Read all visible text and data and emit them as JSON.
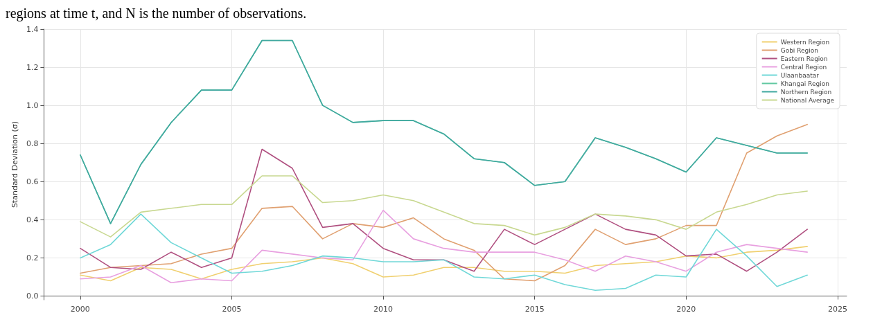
{
  "chart_data": {
    "type": "line",
    "ylabel": "Standard Deviation (σ)",
    "annotations": [
      "regions at time t, and N is the number of observations."
    ],
    "x": [
      2000,
      2001,
      2002,
      2003,
      2004,
      2005,
      2006,
      2007,
      2008,
      2009,
      2010,
      2011,
      2012,
      2013,
      2014,
      2015,
      2016,
      2017,
      2018,
      2019,
      2020,
      2021,
      2022,
      2023,
      2024
    ],
    "series": [
      {
        "name": "Western Region",
        "color": "#f0d070",
        "values": [
          0.11,
          0.08,
          0.15,
          0.14,
          0.09,
          0.14,
          0.17,
          0.18,
          0.2,
          0.17,
          0.1,
          0.11,
          0.15,
          0.15,
          0.13,
          0.13,
          0.12,
          0.16,
          0.17,
          0.18,
          0.21,
          0.2,
          0.23,
          0.24,
          0.26
        ]
      },
      {
        "name": "Gobi Region",
        "color": "#e0a070",
        "values": [
          0.12,
          0.15,
          0.16,
          0.17,
          0.22,
          0.25,
          0.46,
          0.47,
          0.3,
          0.38,
          0.36,
          0.41,
          0.3,
          0.24,
          0.09,
          0.08,
          0.16,
          0.35,
          0.27,
          0.3,
          0.37,
          0.37,
          0.75,
          0.84,
          0.9
        ]
      },
      {
        "name": "Eastern Region",
        "color": "#b05080",
        "values": [
          0.25,
          0.15,
          0.14,
          0.23,
          0.15,
          0.2,
          0.77,
          0.67,
          0.36,
          0.38,
          0.25,
          0.19,
          0.19,
          0.13,
          0.35,
          0.27,
          0.35,
          0.43,
          0.35,
          0.32,
          0.21,
          0.22,
          0.13,
          0.23,
          0.35
        ]
      },
      {
        "name": "Central Region",
        "color": "#e8a0e0",
        "values": [
          0.09,
          0.1,
          0.16,
          0.07,
          0.09,
          0.08,
          0.24,
          0.22,
          0.2,
          0.19,
          0.45,
          0.3,
          0.25,
          0.23,
          0.23,
          0.23,
          0.19,
          0.13,
          0.21,
          0.18,
          0.13,
          0.23,
          0.27,
          0.25,
          0.23
        ]
      },
      {
        "name": "Ulaanbaatar",
        "color": "#70d8d8",
        "values": [
          0.2,
          0.27,
          0.43,
          0.28,
          0.2,
          0.12,
          0.13,
          0.16,
          0.21,
          0.2,
          0.18,
          0.18,
          0.19,
          0.1,
          0.09,
          0.11,
          0.06,
          0.03,
          0.04,
          0.11,
          0.1,
          0.35,
          0.21,
          0.05,
          0.11
        ]
      },
      {
        "name": "Khangai Region",
        "color": "#60c8a0",
        "values": [
          0.74,
          0.38,
          0.69,
          0.91,
          1.08,
          1.08,
          1.34,
          1.34,
          1.0,
          0.91,
          0.92,
          0.92,
          0.85,
          0.72,
          0.7,
          0.58,
          0.6,
          0.83,
          0.78,
          0.72,
          0.65,
          0.83,
          0.79,
          0.75,
          0.75
        ]
      },
      {
        "name": "Northern Region",
        "color": "#40a8a0",
        "values": [
          0.74,
          0.38,
          0.69,
          0.91,
          1.08,
          1.08,
          1.34,
          1.34,
          1.0,
          0.91,
          0.92,
          0.92,
          0.85,
          0.72,
          0.7,
          0.58,
          0.6,
          0.83,
          0.78,
          0.72,
          0.65,
          0.83,
          0.79,
          0.75,
          0.75
        ]
      },
      {
        "name": "National Average",
        "color": "#c8d890",
        "values": [
          0.39,
          0.31,
          0.44,
          0.46,
          0.48,
          0.48,
          0.63,
          0.63,
          0.49,
          0.5,
          0.53,
          0.5,
          0.44,
          0.38,
          0.37,
          0.32,
          0.36,
          0.43,
          0.42,
          0.4,
          0.35,
          0.44,
          0.48,
          0.53,
          0.55
        ]
      }
    ],
    "xlim": [
      1998.8,
      2025.3
    ],
    "xticks": [
      2000,
      2005,
      2010,
      2015,
      2020,
      2025
    ],
    "ylim": [
      -0.02,
      1.4
    ],
    "yticks": [
      {
        "value": 0,
        "label": "0.0"
      },
      0.2,
      0.4,
      0.6,
      0.8,
      {
        "value": 1,
        "label": "1.0"
      },
      1.2,
      1.4
    ],
    "grid": true,
    "legend": "top right"
  }
}
